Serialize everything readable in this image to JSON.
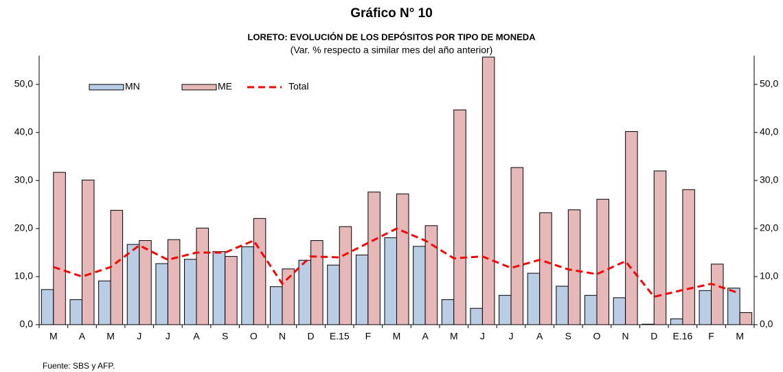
{
  "chart_data": {
    "type": "bar",
    "title": "Gráfico N° 10",
    "subtitle": "LORETO: EVOLUCIÓN DE LOS DEPÓSITOS POR TIPO DE MONEDA",
    "note": "(Var. % respecto a similar mes del año anterior)",
    "source": "Fuente: SBS y AFP.",
    "categories": [
      "M",
      "A",
      "M",
      "J",
      "J",
      "A",
      "S",
      "O",
      "N",
      "D",
      "E.15",
      "F",
      "M",
      "A",
      "M",
      "J",
      "J",
      "A",
      "S",
      "O",
      "N",
      "D",
      "E.16",
      "F",
      "M"
    ],
    "series": [
      {
        "name": "MN",
        "type": "bar",
        "color": "#b9cde5",
        "values": [
          7.3,
          5.2,
          9.1,
          16.7,
          12.7,
          13.6,
          15.2,
          16.2,
          7.9,
          13.4,
          12.4,
          14.5,
          18.1,
          16.3,
          5.2,
          3.4,
          6.1,
          10.7,
          8.0,
          6.1,
          5.6,
          0.1,
          1.2,
          7.1,
          7.6
        ]
      },
      {
        "name": "ME",
        "type": "bar",
        "color": "#e6b9b8",
        "values": [
          31.7,
          30.1,
          23.8,
          17.5,
          17.7,
          20.1,
          14.2,
          22.1,
          11.6,
          17.5,
          20.4,
          27.6,
          27.2,
          20.6,
          44.7,
          55.7,
          32.7,
          23.3,
          23.9,
          26.1,
          40.2,
          32.0,
          28.1,
          12.6,
          2.5
        ]
      },
      {
        "name": "Total",
        "type": "line",
        "color": "#ff0000",
        "values": [
          12.0,
          10.0,
          12.0,
          16.5,
          13.5,
          15.0,
          15.0,
          17.5,
          8.5,
          14.2,
          14.0,
          17.0,
          20.0,
          17.5,
          13.8,
          14.2,
          11.8,
          13.5,
          11.5,
          10.5,
          13.2,
          5.8,
          7.2,
          8.5,
          6.5
        ]
      }
    ],
    "ylim": [
      0,
      56
    ],
    "yticks": [
      {
        "value": 0,
        "label": "0,0"
      },
      {
        "value": 10,
        "label": "10,0"
      },
      {
        "value": 20,
        "label": "20,0"
      },
      {
        "value": 30,
        "label": "30,0"
      },
      {
        "value": 40,
        "label": "40,0"
      },
      {
        "value": 50,
        "label": "50,0"
      }
    ],
    "y2lim": [
      0,
      56
    ],
    "y2ticks": [
      {
        "value": 0,
        "label": "0,0"
      },
      {
        "value": 10,
        "label": "10,0"
      },
      {
        "value": 20,
        "label": "20,0"
      },
      {
        "value": 30,
        "label": "30,0"
      },
      {
        "value": 40,
        "label": "40,0"
      },
      {
        "value": 50,
        "label": "50,0"
      }
    ],
    "legend": "top-left",
    "grid": false
  }
}
